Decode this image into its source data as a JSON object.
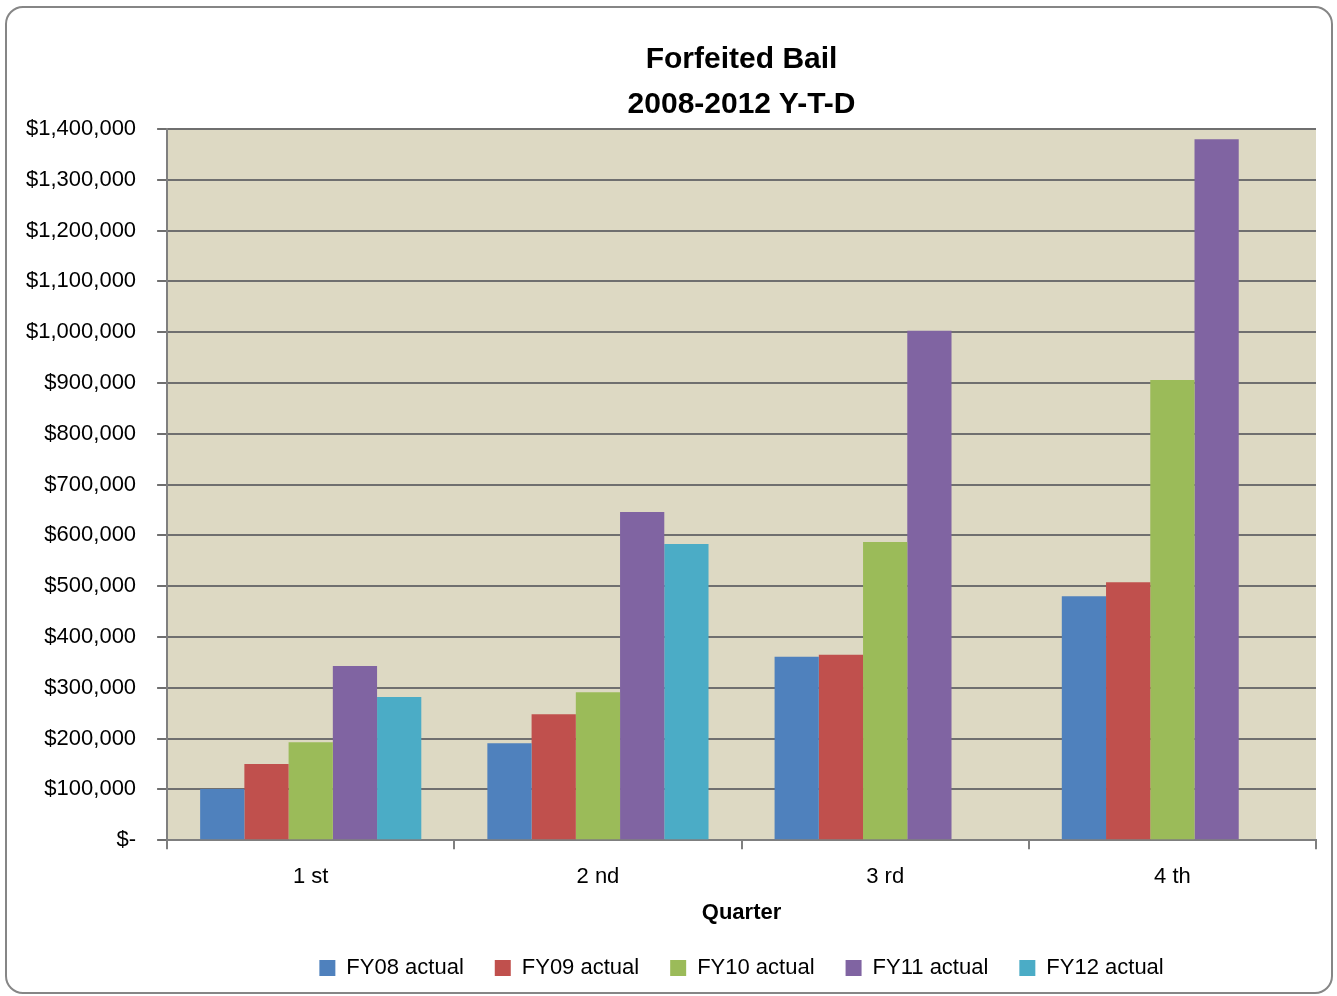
{
  "chart_data": {
    "type": "bar",
    "title": "Forfeited Bail",
    "subtitle": "2008-2012 Y-T-D",
    "xlabel": "Quarter",
    "categories": [
      "1 st",
      "2 nd",
      "3 rd",
      "4 th"
    ],
    "series": [
      {
        "name": "FY08 actual",
        "color": "#4f81bd",
        "values": [
          101000,
          191000,
          361000,
          480000
        ]
      },
      {
        "name": "FY09 actual",
        "color": "#c0504d",
        "values": [
          150000,
          248000,
          365000,
          508000
        ]
      },
      {
        "name": "FY10 actual",
        "color": "#9bbb59",
        "values": [
          193000,
          291000,
          587000,
          906000
        ]
      },
      {
        "name": "FY11 actual",
        "color": "#8064a2",
        "values": [
          343000,
          646000,
          1003000,
          1380000
        ]
      },
      {
        "name": "FY12 actual",
        "color": "#4bacc6",
        "values": [
          282000,
          583000,
          null,
          null
        ]
      }
    ],
    "ylim": [
      0,
      1400000
    ],
    "yticks": [
      {
        "value": 0,
        "label": "$-"
      },
      {
        "value": 100000,
        "label": "$100,000"
      },
      {
        "value": 200000,
        "label": "$200,000"
      },
      {
        "value": 300000,
        "label": "$300,000"
      },
      {
        "value": 400000,
        "label": "$400,000"
      },
      {
        "value": 500000,
        "label": "$500,000"
      },
      {
        "value": 600000,
        "label": "$600,000"
      },
      {
        "value": 700000,
        "label": "$700,000"
      },
      {
        "value": 800000,
        "label": "$800,000"
      },
      {
        "value": 900000,
        "label": "$900,000"
      },
      {
        "value": 1000000,
        "label": "$1,000,000"
      },
      {
        "value": 1100000,
        "label": "$1,100,000"
      },
      {
        "value": 1200000,
        "label": "$1,200,000"
      },
      {
        "value": 1300000,
        "label": "$1,300,000"
      },
      {
        "value": 1400000,
        "label": "$1,400,000"
      }
    ],
    "grid": "y",
    "legend": "bottom"
  }
}
